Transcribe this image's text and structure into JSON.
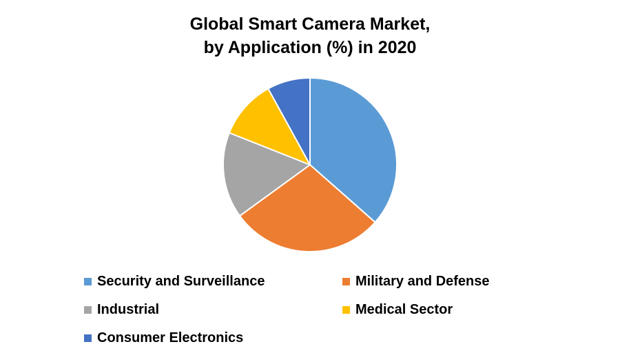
{
  "chart_data": {
    "type": "pie",
    "title_lines": [
      "Global Smart Camera Market,",
      "by Application (%) in 2020"
    ],
    "categories": [
      "Security and Surveillance",
      "Military and Defense",
      "Industrial",
      "Medical Sector",
      "Consumer Electronics"
    ],
    "values": [
      36.5,
      28.5,
      16,
      11,
      8
    ],
    "colors": [
      "#5B9BD5",
      "#ED7D31",
      "#A5A5A5",
      "#FFC000",
      "#4472C4"
    ],
    "legend_position": "bottom",
    "start_angle_deg": 0,
    "direction": "clockwise"
  }
}
